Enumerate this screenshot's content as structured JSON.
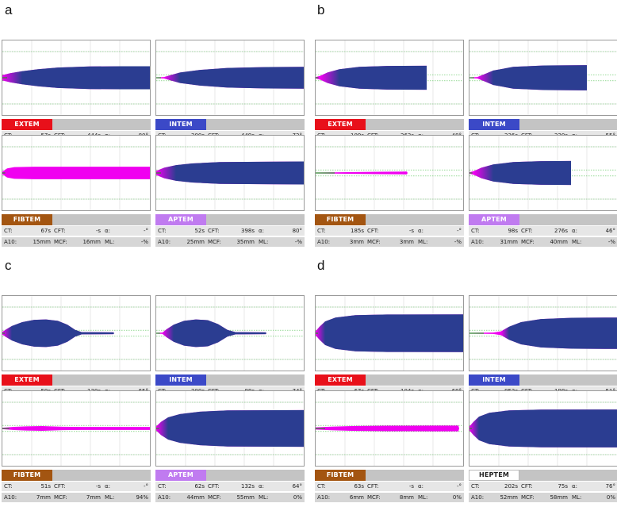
{
  "chart_data": {
    "type": "rotem-thromboelastometry",
    "panels": [
      {
        "label": "a",
        "assays": [
          {
            "name": "EXTEM",
            "color": "#e8101a",
            "CT": "57s",
            "CFT": "444s",
            "alpha": "80°",
            "A10": "23mm",
            "MCF": "35mm",
            "ML": "-%",
            "shape": [
              [
                0,
                2,
                0.4
              ],
              [
                10,
                3.5,
                0.7
              ],
              [
                25,
                5,
                1
              ],
              [
                45,
                6.5,
                1
              ],
              [
                70,
                7.8,
                1
              ],
              [
                110,
                8.6,
                1
              ],
              [
                150,
                8.8,
                1
              ],
              [
                186,
                8.8,
                1
              ]
            ]
          },
          {
            "name": "INTEM",
            "color": "#3b49c7",
            "CT": "200s",
            "CFT": "449s",
            "alpha": "72°",
            "A10": "23mm",
            "MCF": "32mm",
            "ML": "-%",
            "shape": [
              [
                0,
                0.3,
                0
              ],
              [
                10,
                0.5,
                0.2
              ],
              [
                18,
                2,
                0.5
              ],
              [
                30,
                4,
                1
              ],
              [
                55,
                6,
                1
              ],
              [
                90,
                7.5,
                1
              ],
              [
                140,
                8.2,
                1
              ],
              [
                186,
                8.3,
                1
              ]
            ]
          },
          {
            "name": "FIBTEM",
            "color": "#a35511",
            "CT": "67s",
            "CFT": "-s",
            "alpha": "-°",
            "A10": "15mm",
            "MCF": "16mm",
            "ML": "-%",
            "shape": [
              [
                0,
                1,
                0
              ],
              [
                6,
                3.5,
                0
              ],
              [
                15,
                4.5,
                0
              ],
              [
                40,
                4.8,
                0
              ],
              [
                186,
                4.8,
                0
              ]
            ]
          },
          {
            "name": "APTEM",
            "color": "#c07bf0",
            "CT": "52s",
            "CFT": "398s",
            "alpha": "80°",
            "A10": "25mm",
            "MCF": "35mm",
            "ML": "-%",
            "shape": [
              [
                0,
                1.5,
                0.3
              ],
              [
                10,
                4,
                0.7
              ],
              [
                25,
                6,
                1
              ],
              [
                45,
                7.3,
                1
              ],
              [
                80,
                8.3,
                1
              ],
              [
                186,
                8.8,
                1
              ]
            ]
          }
        ]
      },
      {
        "label": "b",
        "assays": [
          {
            "name": "EXTEM",
            "color": "#e8101a",
            "CT": "109s",
            "CFT": "263s",
            "alpha": "48°",
            "A10": "31mm",
            "MCF": "38mm",
            "ML": "-%",
            "shape": [
              [
                0,
                0.5,
                0
              ],
              [
                6,
                1.5,
                0.4
              ],
              [
                15,
                4,
                0.8
              ],
              [
                30,
                6.5,
                1
              ],
              [
                55,
                8.3,
                1
              ],
              [
                90,
                9,
                1
              ],
              [
                140,
                9.2,
                1
              ]
            ]
          },
          {
            "name": "INTEM",
            "color": "#3b49c7",
            "CT": "236s",
            "CFT": "220s",
            "alpha": "55°",
            "A10": "33mm",
            "MCF": "42mm",
            "ML": "-%",
            "shape": [
              [
                0,
                0.3,
                0
              ],
              [
                10,
                0.5,
                0.2
              ],
              [
                18,
                2.5,
                0.5
              ],
              [
                30,
                5.5,
                1
              ],
              [
                55,
                8.3,
                1
              ],
              [
                95,
                9.4,
                1
              ],
              [
                148,
                9.6,
                1
              ]
            ]
          },
          {
            "name": "FIBTEM",
            "color": "#a35511",
            "CT": "185s",
            "CFT": "-s",
            "alpha": "-°",
            "A10": "3mm",
            "MCF": "3mm",
            "ML": "-%",
            "shape": [
              [
                0,
                0.3,
                0
              ],
              [
                40,
                0.6,
                0
              ],
              [
                80,
                0.9,
                0
              ],
              [
                115,
                1.1,
                0
              ],
              [
                116,
                0,
                0
              ]
            ]
          },
          {
            "name": "APTEM",
            "color": "#c07bf0",
            "CT": "98s",
            "CFT": "276s",
            "alpha": "46°",
            "A10": "31mm",
            "MCF": "40mm",
            "ML": "-%",
            "shape": [
              [
                0,
                0.5,
                0
              ],
              [
                6,
                1.5,
                0.4
              ],
              [
                15,
                4,
                0.8
              ],
              [
                30,
                6.5,
                1
              ],
              [
                55,
                8.3,
                1
              ],
              [
                90,
                9,
                1
              ],
              [
                128,
                9.2,
                1
              ]
            ]
          }
        ]
      },
      {
        "label": "c",
        "assays": [
          {
            "name": "EXTEM",
            "color": "#e8101a",
            "CT": "59s",
            "CFT": "130s",
            "alpha": "65°",
            "A10": "44mm",
            "MCF": "48mm",
            "ML": "100%",
            "shape": [
              [
                0,
                1,
                0.3
              ],
              [
                5,
                3,
                0.6
              ],
              [
                12,
                5.5,
                1
              ],
              [
                25,
                8.5,
                1
              ],
              [
                40,
                10.2,
                1
              ],
              [
                55,
                10.5,
                1
              ],
              [
                70,
                9.5,
                1
              ],
              [
                82,
                6.5,
                1
              ],
              [
                92,
                2.5,
                1
              ],
              [
                100,
                0.8,
                1
              ],
              [
                140,
                0.7,
                1
              ],
              [
                141,
                0,
                1
              ]
            ]
          },
          {
            "name": "INTEM",
            "color": "#3b49c7",
            "CT": "200s",
            "CFT": "88s",
            "alpha": "74°",
            "A10": "46mm",
            "MCF": "48mm",
            "ML": "100%",
            "shape": [
              [
                0,
                0.3,
                0
              ],
              [
                8,
                0.5,
                0.2
              ],
              [
                13,
                3,
                0.6
              ],
              [
                22,
                6.5,
                1
              ],
              [
                35,
                9.5,
                1
              ],
              [
                50,
                10.5,
                1
              ],
              [
                65,
                10,
                1
              ],
              [
                78,
                7,
                1
              ],
              [
                90,
                2.5,
                1
              ],
              [
                100,
                0.8,
                1
              ],
              [
                138,
                0.7,
                1
              ],
              [
                139,
                0,
                1
              ]
            ]
          },
          {
            "name": "FIBTEM",
            "color": "#a35511",
            "CT": "51s",
            "CFT": "-s",
            "alpha": "-°",
            "A10": "7mm",
            "MCF": "7mm",
            "ML": "94%",
            "shape": [
              [
                0,
                0.5,
                0
              ],
              [
                15,
                1.2,
                0
              ],
              [
                30,
                1.6,
                0
              ],
              [
                50,
                1.8,
                0
              ],
              [
                75,
                1.3,
                0
              ],
              [
                100,
                1.1,
                0
              ],
              [
                186,
                1.1,
                0
              ]
            ]
          },
          {
            "name": "APTEM",
            "color": "#c07bf0",
            "CT": "62s",
            "CFT": "132s",
            "alpha": "64°",
            "A10": "44mm",
            "MCF": "55mm",
            "ML": "0%",
            "shape": [
              [
                0,
                1.5,
                0.3
              ],
              [
                6,
                5,
                0.6
              ],
              [
                15,
                8.5,
                1
              ],
              [
                30,
                11,
                1
              ],
              [
                55,
                12.8,
                1
              ],
              [
                90,
                13.8,
                1
              ],
              [
                186,
                14,
                1
              ]
            ]
          }
        ]
      },
      {
        "label": "d",
        "assays": [
          {
            "name": "EXTEM",
            "color": "#e8101a",
            "CT": "67s",
            "CFT": "104s",
            "alpha": "68°",
            "A10": "50mm",
            "MCF": "57mm",
            "ML": "0%",
            "shape": [
              [
                0,
                1.5,
                0.3
              ],
              [
                5,
                5,
                0.6
              ],
              [
                12,
                9,
                1
              ],
              [
                25,
                12,
                1
              ],
              [
                50,
                13.8,
                1
              ],
              [
                90,
                14.3,
                1
              ],
              [
                186,
                14.4,
                1
              ]
            ]
          },
          {
            "name": "INTEM",
            "color": "#3b49c7",
            "CT": "852s",
            "CFT": "198s",
            "alpha": "51°",
            "A10": "41mm",
            "MCF": "48mm",
            "ML": "0%",
            "shape": [
              [
                0,
                0.3,
                0
              ],
              [
                30,
                0.5,
                0
              ],
              [
                40,
                1.5,
                0.5
              ],
              [
                50,
                5,
                1
              ],
              [
                65,
                8.5,
                1
              ],
              [
                90,
                10.8,
                1
              ],
              [
                130,
                11.8,
                1
              ],
              [
                186,
                12,
                1
              ]
            ]
          },
          {
            "name": "FIBTEM",
            "color": "#a35511",
            "CT": "63s",
            "CFT": "-s",
            "alpha": "-°",
            "A10": "6mm",
            "MCF": "8mm",
            "ML": "0%",
            "shape": [
              [
                0,
                0.8,
                0
              ],
              [
                20,
                1.4,
                0
              ],
              [
                50,
                1.9,
                0
              ],
              [
                90,
                2.1,
                0
              ],
              [
                150,
                2.2,
                0
              ],
              [
                180,
                2.2,
                0
              ],
              [
                181,
                0,
                0
              ]
            ]
          },
          {
            "name": "HEPTEM",
            "color": "#ffffff",
            "CT": "202s",
            "CFT": "75s",
            "alpha": "76°",
            "A10": "52mm",
            "MCF": "58mm",
            "ML": "0%",
            "shape": [
              [
                0,
                1.5,
                0.3
              ],
              [
                5,
                5,
                0.6
              ],
              [
                12,
                9,
                1
              ],
              [
                25,
                12,
                1
              ],
              [
                50,
                13.8,
                1
              ],
              [
                90,
                14.4,
                1
              ],
              [
                186,
                14.5,
                1
              ]
            ]
          }
        ]
      }
    ]
  },
  "field_labels": {
    "ct": "CT:",
    "cft": "CFT:",
    "alpha": "α:",
    "a10": "A10:",
    "mcf": "MCF:",
    "ml": "ML:"
  }
}
